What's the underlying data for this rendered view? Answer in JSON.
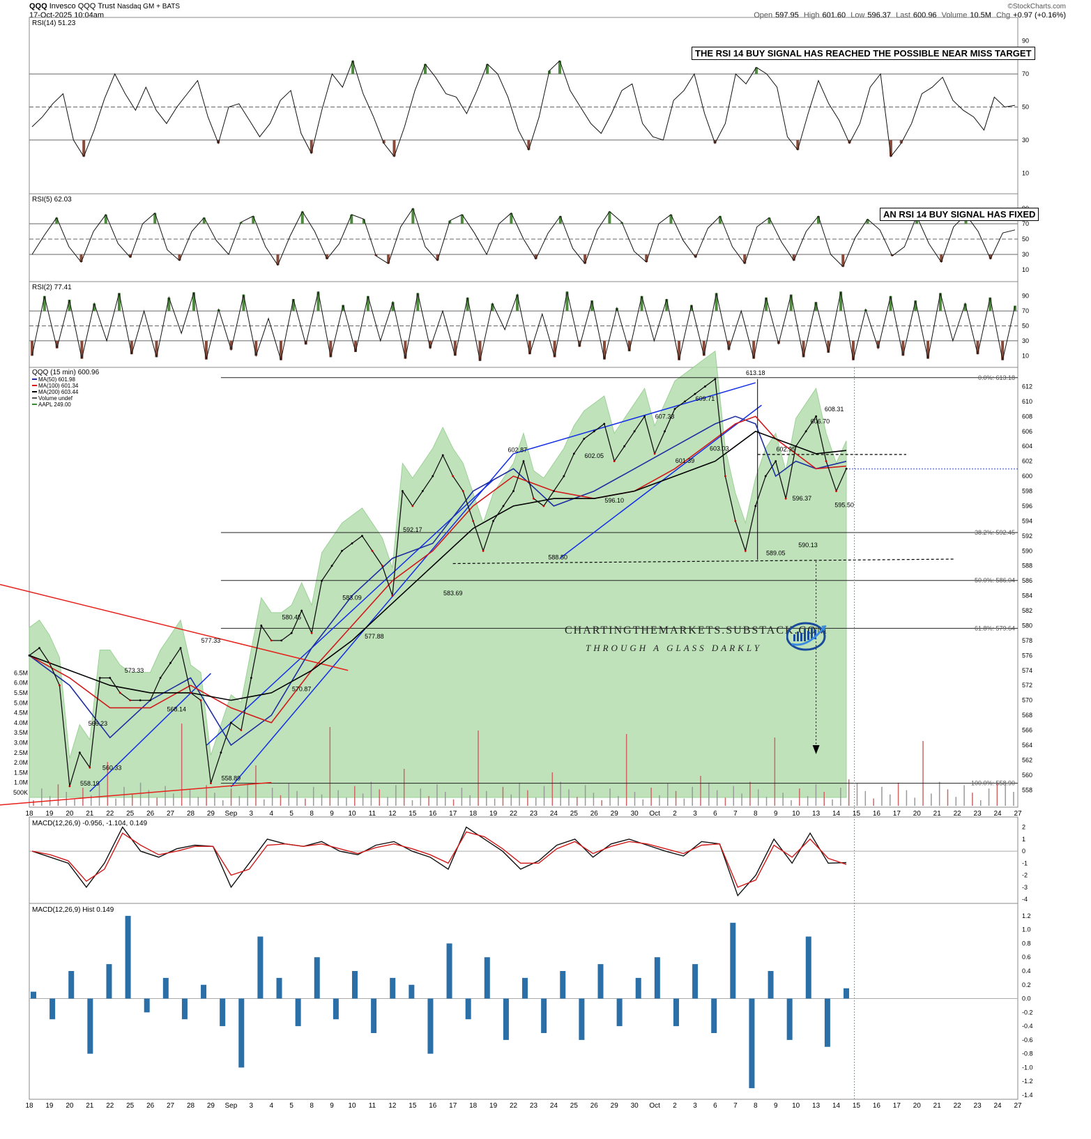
{
  "header": {
    "symbol": "QQQ",
    "name": "Invesco QQQ Trust",
    "exchange": "Nasdaq GM + BATS",
    "date": "17-Oct-2025 10:04am",
    "watermark": "©StockCharts.com",
    "open_label": "Open",
    "open": "597.95",
    "high_label": "High",
    "high": "601.60",
    "low_label": "Low",
    "low": "596.37",
    "last_label": "Last",
    "last": "600.96",
    "volume_label": "Volume",
    "volume": "10.5M",
    "chg_label": "Chg",
    "chg": "+0.97 (+0.16%)"
  },
  "notes": {
    "rsi14_note": "THE RSI 14 BUY SIGNAL HAS REACHED THE POSSIBLE NEAR MISS TARGET",
    "rsi5_note": "AN RSI 14 BUY SIGNAL HAS FIXED",
    "brand": "CHARTINGTHEMARKETS.SUBSTACK.COM",
    "tagline": "THROUGH A GLASS DARKLY"
  },
  "colors": {
    "price_up": "#000000",
    "price_down": "#cc0000",
    "ma50": "#1f2fa0",
    "ma100": "#d11a1a",
    "ma200": "#000000",
    "aapl_fill": "#b5deb0",
    "channel": "#1430e6",
    "resistance": "#e6201a",
    "macd_hist": "#2a6fa8",
    "rsi_over": "#4d8a3d",
    "rsi_under": "#8a4a3a"
  },
  "chart_data": [
    {
      "type": "line",
      "panel": "RSI(14)",
      "title": "RSI(14) 51.23",
      "ylim": [
        0,
        100
      ],
      "yticks": [
        "90",
        "70",
        "50",
        "30",
        "10"
      ],
      "levels": [
        70,
        50,
        30
      ],
      "series": [
        {
          "name": "RSI(14)",
          "values": [
            38,
            44,
            52,
            58,
            30,
            20,
            36,
            55,
            70,
            58,
            48,
            62,
            48,
            40,
            50,
            58,
            66,
            44,
            28,
            50,
            52,
            42,
            32,
            40,
            54,
            60,
            34,
            22,
            48,
            70,
            62,
            78,
            58,
            44,
            28,
            20,
            38,
            60,
            76,
            68,
            58,
            56,
            46,
            60,
            76,
            70,
            56,
            36,
            24,
            44,
            72,
            78,
            60,
            50,
            40,
            34,
            46,
            60,
            64,
            40,
            32,
            30,
            54,
            60,
            70,
            46,
            28,
            40,
            70,
            64,
            74,
            70,
            62,
            32,
            24,
            46,
            66,
            52,
            42,
            28,
            40,
            62,
            70,
            20,
            28,
            40,
            58,
            62,
            68,
            54,
            48,
            44,
            36,
            56,
            50,
            51
          ]
        }
      ]
    },
    {
      "type": "line",
      "panel": "RSI(5)",
      "title": "RSI(5) 62.03",
      "ylim": [
        0,
        100
      ],
      "yticks": [
        "90",
        "70",
        "50",
        "30",
        "10"
      ],
      "levels": [
        70,
        50,
        30
      ],
      "series": [
        {
          "name": "RSI(5)",
          "values": [
            30,
            55,
            78,
            40,
            20,
            60,
            82,
            44,
            26,
            70,
            84,
            36,
            22,
            60,
            78,
            48,
            30,
            72,
            80,
            40,
            16,
            54,
            86,
            60,
            24,
            44,
            82,
            76,
            28,
            18,
            66,
            90,
            40,
            22,
            74,
            82,
            58,
            30,
            70,
            84,
            50,
            24,
            58,
            80,
            38,
            18,
            62,
            86,
            72,
            34,
            20,
            70,
            82,
            48,
            26,
            64,
            80,
            40,
            18,
            66,
            78,
            46,
            22,
            60,
            80,
            30,
            14,
            52,
            76,
            62,
            28,
            40,
            80,
            44,
            20,
            66,
            82,
            60,
            24,
            58,
            62
          ]
        }
      ]
    },
    {
      "type": "line",
      "panel": "RSI(2)",
      "title": "RSI(2) 77.41",
      "ylim": [
        0,
        100
      ],
      "yticks": [
        "90",
        "70",
        "50",
        "30",
        "10"
      ],
      "levels": [
        70,
        50,
        30
      ],
      "series": [
        {
          "name": "RSI(2)",
          "values": [
            10,
            90,
            20,
            85,
            6,
            80,
            30,
            94,
            12,
            70,
            8,
            88,
            40,
            95,
            5,
            72,
            18,
            92,
            10,
            60,
            4,
            86,
            25,
            96,
            8,
            78,
            15,
            90,
            30,
            82,
            6,
            94,
            20,
            70,
            10,
            88,
            3,
            80,
            45,
            92,
            12,
            66,
            8,
            96,
            22,
            84,
            5,
            74,
            16,
            90,
            30,
            86,
            4,
            78,
            10,
            94,
            18,
            70,
            6,
            88,
            26,
            92,
            8,
            82,
            14,
            96,
            4,
            72,
            20,
            90,
            10,
            84,
            6,
            94,
            30,
            80,
            12,
            88,
            4,
            77
          ]
        }
      ]
    },
    {
      "type": "line",
      "panel": "QQQ (15 min)",
      "title": "QQQ (15 min) 600.96",
      "legend": [
        "MA(50) 601.98",
        "MA(100) 601.34",
        "MA(200) 603.44",
        "Volume undef",
        "AAPL 249.00"
      ],
      "ylim": [
        557,
        614
      ],
      "yticks": [
        "612",
        "610",
        "608",
        "606",
        "604",
        "602",
        "600",
        "598",
        "596",
        "594",
        "592",
        "590",
        "588",
        "586",
        "584",
        "582",
        "580",
        "578",
        "576",
        "574",
        "572",
        "570",
        "568",
        "566",
        "564",
        "562",
        "560",
        "558"
      ],
      "volume_ticks": [
        "6.5M",
        "6.0M",
        "5.5M",
        "5.0M",
        "4.5M",
        "4.0M",
        "3.5M",
        "3.0M",
        "2.5M",
        "2.0M",
        "1.5M",
        "1.0M",
        "500K"
      ],
      "x_tick_labels": [
        "18",
        "19",
        "20",
        "21",
        "22",
        "25",
        "26",
        "27",
        "28",
        "29",
        "Sep",
        "3",
        "4",
        "5",
        "8",
        "9",
        "10",
        "11",
        "12",
        "15",
        "16",
        "17",
        "18",
        "19",
        "22",
        "23",
        "24",
        "25",
        "26",
        "29",
        "30",
        "Oct",
        "2",
        "3",
        "6",
        "7",
        "8",
        "9",
        "10",
        "13",
        "14",
        "15",
        "16",
        "17",
        "20",
        "21",
        "22",
        "23",
        "24",
        "27"
      ],
      "fib_levels": [
        {
          "label": "0.0%: 613.18",
          "value": 613.18
        },
        {
          "label": "38.2%: 592.45",
          "value": 592.45
        },
        {
          "label": "50.0%: 586.04",
          "value": 586.04
        },
        {
          "label": "61.8%: 579.64",
          "value": 579.64
        },
        {
          "label": "100.0%: 558.90",
          "value": 558.9
        }
      ],
      "annotations": [
        {
          "text": "558.19",
          "x": 3.0,
          "y": 558.19
        },
        {
          "text": "560.33",
          "x": 4.1,
          "y": 560.33
        },
        {
          "text": "566.23",
          "x": 3.4,
          "y": 566.23
        },
        {
          "text": "573.33",
          "x": 5.2,
          "y": 573.33
        },
        {
          "text": "568.14",
          "x": 7.3,
          "y": 568.14
        },
        {
          "text": "577.33",
          "x": 9.0,
          "y": 577.33
        },
        {
          "text": "558.89",
          "x": 10.0,
          "y": 558.89
        },
        {
          "text": "580.45",
          "x": 13.0,
          "y": 580.45
        },
        {
          "text": "570.87",
          "x": 13.5,
          "y": 570.87
        },
        {
          "text": "583.09",
          "x": 16.0,
          "y": 583.09
        },
        {
          "text": "577.88",
          "x": 17.1,
          "y": 577.88
        },
        {
          "text": "592.17",
          "x": 19.0,
          "y": 592.17
        },
        {
          "text": "583.69",
          "x": 21.0,
          "y": 583.69
        },
        {
          "text": "602.87",
          "x": 24.2,
          "y": 602.87
        },
        {
          "text": "588.50",
          "x": 26.2,
          "y": 588.5
        },
        {
          "text": "602.05",
          "x": 28.0,
          "y": 602.05
        },
        {
          "text": "596.10",
          "x": 29.0,
          "y": 596.1
        },
        {
          "text": "607.33",
          "x": 31.5,
          "y": 607.33
        },
        {
          "text": "601.39",
          "x": 32.5,
          "y": 601.39
        },
        {
          "text": "609.71",
          "x": 33.5,
          "y": 609.71
        },
        {
          "text": "603.03",
          "x": 34.2,
          "y": 603.03
        },
        {
          "text": "613.18",
          "x": 36.0,
          "y": 613.18
        },
        {
          "text": "589.05",
          "x": 37.0,
          "y": 589.05
        },
        {
          "text": "602.95",
          "x": 37.5,
          "y": 602.95
        },
        {
          "text": "596.37",
          "x": 38.3,
          "y": 596.37
        },
        {
          "text": "590.13",
          "x": 38.6,
          "y": 590.13
        },
        {
          "text": "606.70",
          "x": 39.2,
          "y": 606.7
        },
        {
          "text": "608.31",
          "x": 39.9,
          "y": 608.31
        },
        {
          "text": "595.50",
          "x": 40.4,
          "y": 595.5
        }
      ],
      "series": [
        {
          "name": "QQQ",
          "x": [
            0,
            0.5,
            1,
            1.5,
            2,
            2.5,
            3,
            3.5,
            4,
            4.5,
            5,
            5.5,
            6,
            6.5,
            7,
            7.5,
            8,
            8.5,
            9,
            9.5,
            10,
            10.5,
            11,
            11.5,
            12,
            12.5,
            13,
            13.5,
            14,
            14.5,
            15,
            15.5,
            16,
            16.5,
            17,
            17.5,
            18,
            18.5,
            19,
            19.5,
            20,
            20.5,
            21,
            21.5,
            22,
            22.5,
            23,
            23.5,
            24,
            24.5,
            25,
            25.5,
            26,
            26.5,
            27,
            27.5,
            28,
            28.5,
            29,
            29.5,
            30,
            30.5,
            31,
            31.5,
            32,
            32.5,
            33,
            33.5,
            34,
            34.5,
            35,
            35.5,
            36,
            36.5,
            37,
            37.5,
            38,
            38.5,
            39,
            39.5,
            40,
            40.5
          ],
          "values": [
            576,
            577,
            575,
            572,
            558.5,
            563,
            561,
            573,
            573,
            571,
            570,
            570,
            570,
            573,
            575,
            577,
            571,
            570,
            558.9,
            563,
            567,
            566,
            573,
            580,
            578,
            578,
            579,
            582,
            579,
            586,
            588,
            590,
            591,
            592,
            590,
            588,
            584,
            598,
            596,
            598,
            600,
            602.8,
            600,
            598,
            594,
            590,
            594,
            596,
            598,
            602,
            597,
            596,
            598,
            600,
            603,
            605,
            606,
            607,
            602,
            604,
            606,
            608,
            603,
            606,
            609,
            610,
            611,
            612,
            613,
            600,
            594,
            590,
            596,
            600,
            602,
            597,
            604,
            606,
            608,
            602,
            598,
            601
          ]
        },
        {
          "name": "MA(50)",
          "x": [
            0,
            2,
            4,
            6,
            8,
            10,
            12,
            14,
            16,
            18,
            20,
            22,
            24,
            26,
            28,
            30,
            32,
            34,
            35,
            36,
            37,
            38,
            39,
            40.5
          ],
          "values": [
            576,
            572,
            565,
            570,
            573,
            564,
            568,
            577,
            584,
            589,
            591,
            598,
            601,
            596,
            598,
            601,
            604,
            607,
            608,
            607,
            600,
            602,
            601,
            601.98
          ]
        },
        {
          "name": "MA(100)",
          "x": [
            0,
            2,
            4,
            6,
            8,
            10,
            12,
            14,
            16,
            18,
            20,
            22,
            24,
            26,
            28,
            30,
            32,
            34,
            35,
            36,
            37,
            38,
            39,
            40.5
          ],
          "values": [
            576,
            573,
            569,
            569,
            572,
            569,
            567,
            574,
            580,
            586,
            590,
            596,
            600,
            598,
            597,
            598,
            601,
            605,
            607,
            608,
            605,
            603,
            601,
            601.34
          ]
        },
        {
          "name": "MA(200)",
          "x": [
            0,
            2,
            4,
            6,
            8,
            10,
            12,
            14,
            16,
            18,
            20,
            22,
            24,
            26,
            28,
            30,
            32,
            34,
            35,
            36,
            37,
            38,
            39,
            40.5
          ],
          "values": [
            576,
            574,
            572,
            571,
            571,
            570,
            571,
            574,
            578,
            583,
            588,
            593,
            596,
            597,
            597,
            598,
            600,
            602,
            604,
            606,
            605,
            604,
            603,
            603.44
          ]
        }
      ]
    },
    {
      "type": "line",
      "panel": "MACD",
      "title": "MACD(12,26,9) -0.956, -1.104, 0.149",
      "ylim": [
        -4,
        2.5
      ],
      "yticks": [
        "2",
        "1",
        "0",
        "-1",
        "-2",
        "-3",
        "-4"
      ],
      "series": [
        {
          "name": "MACD",
          "values": [
            0,
            -0.5,
            -1,
            -3,
            -1,
            2,
            0,
            -0.5,
            0.2,
            0.5,
            0.4,
            -3,
            -1,
            1,
            0.6,
            0.4,
            0.8,
            0,
            -0.3,
            0.5,
            0.8,
            0,
            -0.5,
            -1.5,
            2,
            1,
            0,
            -1.5,
            -0.8,
            0.5,
            1,
            -0.5,
            0.6,
            1,
            0.5,
            0,
            -0.4,
            0.8,
            0.6,
            -3.7,
            -2,
            1,
            -1,
            1.5,
            -1,
            -0.956
          ]
        },
        {
          "name": "Signal",
          "values": [
            0,
            -0.3,
            -0.8,
            -2.5,
            -1.5,
            1.5,
            0.5,
            -0.3,
            0,
            0.4,
            0.4,
            -2,
            -1.5,
            0.5,
            0.6,
            0.4,
            0.6,
            0.2,
            -0.2,
            0.3,
            0.6,
            0.2,
            -0.3,
            -1,
            1.6,
            1.2,
            0.2,
            -1,
            -1,
            0.2,
            0.8,
            -0.2,
            0.4,
            0.8,
            0.6,
            0.2,
            -0.2,
            0.5,
            0.6,
            -3,
            -2.4,
            0.5,
            -0.5,
            1,
            -0.6,
            -1.104
          ]
        }
      ]
    },
    {
      "type": "bar",
      "panel": "MACD Histogram",
      "title": "MACD(12,26,9) Hist 0.149",
      "ylim": [
        -1.4,
        1.3
      ],
      "yticks": [
        "1.2",
        "1.0",
        "0.8",
        "0.6",
        "0.4",
        "0.2",
        "0.0",
        "-0.2",
        "-0.4",
        "-0.6",
        "-0.8",
        "-1.0",
        "-1.2",
        "-1.4"
      ],
      "values": [
        0.1,
        -0.3,
        0.4,
        -0.8,
        0.5,
        1.2,
        -0.2,
        0.3,
        -0.3,
        0.2,
        -0.4,
        -1.0,
        0.9,
        0.3,
        -0.4,
        0.6,
        -0.3,
        0.4,
        -0.5,
        0.3,
        0.2,
        -0.8,
        0.8,
        -0.3,
        0.6,
        -0.6,
        0.3,
        -0.5,
        0.4,
        -0.6,
        0.5,
        -0.4,
        0.3,
        0.6,
        -0.4,
        0.5,
        -0.5,
        1.1,
        -1.3,
        0.4,
        -0.6,
        0.9,
        -0.7,
        0.149
      ]
    }
  ]
}
